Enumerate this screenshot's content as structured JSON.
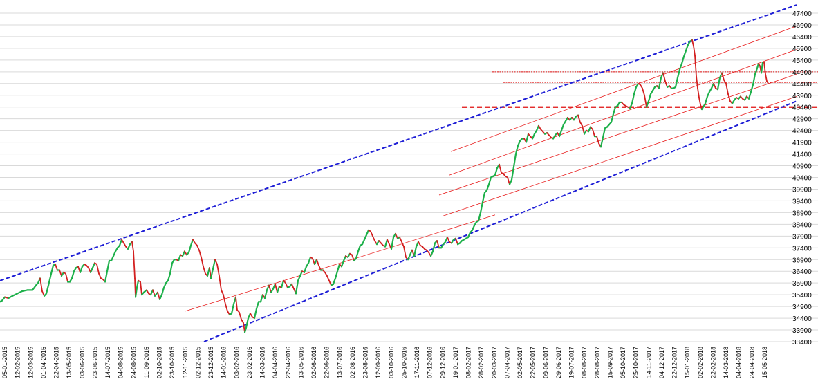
{
  "chart_data": {
    "type": "candlestick",
    "title": "",
    "xlabel": "",
    "ylabel": "",
    "ylim": [
      33400,
      47650
    ],
    "y_ticks": [
      33400,
      33900,
      34400,
      34900,
      35400,
      35900,
      36400,
      36900,
      37400,
      37900,
      38400,
      38900,
      39400,
      39900,
      40400,
      40900,
      41400,
      41900,
      42400,
      42900,
      43400,
      43900,
      44400,
      44900,
      45400,
      45900,
      46400,
      46900,
      47400
    ],
    "x_tick_labels": [
      "05-01-2015",
      "12-02-2015",
      "12-03-2015",
      "01-04-2015",
      "22-04-2015",
      "13-05-2015",
      "03-06-2015",
      "23-06-2015",
      "14-07-2015",
      "04-08-2015",
      "24-08-2015",
      "11-09-2015",
      "02-10-2015",
      "23-10-2015",
      "12-11-2015",
      "02-12-2015",
      "23-12-2015",
      "14-01-2016",
      "03-02-2016",
      "23-02-2016",
      "14-03-2016",
      "04-04-2016",
      "22-04-2016",
      "13-05-2016",
      "02-06-2016",
      "22-06-2016",
      "13-07-2016",
      "02-08-2016",
      "23-08-2016",
      "12-09-2016",
      "03-10-2016",
      "25-10-2016",
      "17-11-2016",
      "07-12-2016",
      "29-12-2016",
      "19-01-2017",
      "08-02-2017",
      "28-02-2017",
      "20-03-2017",
      "07-04-2017",
      "02-05-2017",
      "22-05-2017",
      "09-06-2017",
      "29-06-2017",
      "19-07-2017",
      "08-08-2017",
      "28-08-2017",
      "15-09-2017",
      "05-10-2017",
      "25-10-2017",
      "14-11-2017",
      "04-12-2017",
      "22-12-2017",
      "15-01-2018",
      "02-02-2018",
      "22-02-2018",
      "14-03-2018",
      "04-04-2018",
      "24-04-2018",
      "15-05-2018"
    ],
    "grid": "horizontal",
    "legend": "none",
    "price_path": [
      [
        0,
        35100
      ],
      [
        3,
        35150
      ],
      [
        7,
        35300
      ],
      [
        12,
        35250
      ],
      [
        18,
        35350
      ],
      [
        25,
        35450
      ],
      [
        32,
        35550
      ],
      [
        40,
        35600
      ],
      [
        47,
        35600
      ],
      [
        52,
        35800
      ],
      [
        55,
        35900
      ],
      [
        58,
        36100
      ],
      [
        61,
        35550
      ],
      [
        64,
        35350
      ],
      [
        67,
        35450
      ],
      [
        70,
        35800
      ],
      [
        74,
        36300
      ],
      [
        77,
        36650
      ],
      [
        80,
        36700
      ],
      [
        83,
        36450
      ],
      [
        86,
        36450
      ],
      [
        89,
        36200
      ],
      [
        92,
        36350
      ],
      [
        95,
        36300
      ],
      [
        98,
        35950
      ],
      [
        101,
        35950
      ],
      [
        104,
        36100
      ],
      [
        107,
        36400
      ],
      [
        110,
        36550
      ],
      [
        113,
        36600
      ],
      [
        116,
        36350
      ],
      [
        119,
        36600
      ],
      [
        122,
        36700
      ],
      [
        125,
        36650
      ],
      [
        128,
        36550
      ],
      [
        131,
        36350
      ],
      [
        134,
        36550
      ],
      [
        137,
        36750
      ],
      [
        140,
        36700
      ],
      [
        143,
        36300
      ],
      [
        146,
        36100
      ],
      [
        149,
        36050
      ],
      [
        152,
        35950
      ],
      [
        155,
        36400
      ],
      [
        158,
        36850
      ],
      [
        161,
        36850
      ],
      [
        164,
        37050
      ],
      [
        167,
        37250
      ],
      [
        170,
        37400
      ],
      [
        173,
        37500
      ],
      [
        176,
        37750
      ],
      [
        179,
        37600
      ],
      [
        182,
        37450
      ],
      [
        185,
        37350
      ],
      [
        188,
        37550
      ],
      [
        191,
        37650
      ],
      [
        193,
        37250
      ],
      [
        195,
        36100
      ],
      [
        196,
        35300
      ],
      [
        198,
        35700
      ],
      [
        200,
        36000
      ],
      [
        203,
        35950
      ],
      [
        205,
        35400
      ],
      [
        208,
        35500
      ],
      [
        212,
        35600
      ],
      [
        215,
        35450
      ],
      [
        218,
        35400
      ],
      [
        221,
        35600
      ],
      [
        224,
        35350
      ],
      [
        228,
        35500
      ],
      [
        231,
        35200
      ],
      [
        234,
        35400
      ],
      [
        237,
        35700
      ],
      [
        240,
        35900
      ],
      [
        243,
        36000
      ],
      [
        246,
        36300
      ],
      [
        249,
        36750
      ],
      [
        252,
        36900
      ],
      [
        255,
        36900
      ],
      [
        258,
        36850
      ],
      [
        261,
        37100
      ],
      [
        264,
        37050
      ],
      [
        267,
        37250
      ],
      [
        270,
        37100
      ],
      [
        273,
        37200
      ],
      [
        276,
        37500
      ],
      [
        279,
        37750
      ],
      [
        282,
        37600
      ],
      [
        285,
        37500
      ],
      [
        288,
        37300
      ],
      [
        291,
        37000
      ],
      [
        294,
        36600
      ],
      [
        297,
        36300
      ],
      [
        300,
        36200
      ],
      [
        303,
        36550
      ],
      [
        305,
        36100
      ],
      [
        308,
        36500
      ],
      [
        311,
        36900
      ],
      [
        314,
        36700
      ],
      [
        317,
        36200
      ],
      [
        320,
        35600
      ],
      [
        323,
        35400
      ],
      [
        326,
        35000
      ],
      [
        329,
        34700
      ],
      [
        332,
        34550
      ],
      [
        335,
        34600
      ],
      [
        338,
        35000
      ],
      [
        341,
        35300
      ],
      [
        343,
        34750
      ],
      [
        346,
        34650
      ],
      [
        349,
        34350
      ],
      [
        352,
        34200
      ],
      [
        354,
        33800
      ],
      [
        356,
        34000
      ],
      [
        359,
        34400
      ],
      [
        362,
        34600
      ],
      [
        365,
        34450
      ],
      [
        368,
        34400
      ],
      [
        371,
        34800
      ],
      [
        374,
        35100
      ],
      [
        377,
        35100
      ],
      [
        380,
        35400
      ],
      [
        383,
        35250
      ],
      [
        386,
        35600
      ],
      [
        389,
        35800
      ],
      [
        392,
        35500
      ],
      [
        395,
        35650
      ],
      [
        398,
        35850
      ],
      [
        401,
        35500
      ],
      [
        404,
        35750
      ],
      [
        407,
        35700
      ],
      [
        410,
        36000
      ],
      [
        413,
        35900
      ],
      [
        416,
        35700
      ],
      [
        419,
        35750
      ],
      [
        422,
        35850
      ],
      [
        425,
        35650
      ],
      [
        428,
        35450
      ],
      [
        431,
        36000
      ],
      [
        434,
        36200
      ],
      [
        437,
        36400
      ],
      [
        440,
        36350
      ],
      [
        443,
        36600
      ],
      [
        446,
        36750
      ],
      [
        449,
        37000
      ],
      [
        452,
        36950
      ],
      [
        455,
        36700
      ],
      [
        458,
        36900
      ],
      [
        461,
        36650
      ],
      [
        464,
        36450
      ],
      [
        467,
        36450
      ],
      [
        470,
        36350
      ],
      [
        473,
        36200
      ],
      [
        476,
        36000
      ],
      [
        479,
        35800
      ],
      [
        482,
        35850
      ],
      [
        485,
        36100
      ],
      [
        488,
        36400
      ],
      [
        491,
        36700
      ],
      [
        494,
        36600
      ],
      [
        497,
        36850
      ],
      [
        500,
        37050
      ],
      [
        503,
        37000
      ],
      [
        506,
        37150
      ],
      [
        509,
        37100
      ],
      [
        512,
        36850
      ],
      [
        515,
        36950
      ],
      [
        518,
        37250
      ],
      [
        521,
        37500
      ],
      [
        524,
        37550
      ],
      [
        527,
        37750
      ],
      [
        530,
        37950
      ],
      [
        533,
        38150
      ],
      [
        536,
        38100
      ],
      [
        539,
        37900
      ],
      [
        542,
        37700
      ],
      [
        545,
        37550
      ],
      [
        548,
        37700
      ],
      [
        551,
        37600
      ],
      [
        554,
        37500
      ],
      [
        557,
        37450
      ],
      [
        560,
        37750
      ],
      [
        563,
        37550
      ],
      [
        566,
        37350
      ],
      [
        569,
        37850
      ],
      [
        572,
        38000
      ],
      [
        575,
        37800
      ],
      [
        578,
        37850
      ],
      [
        581,
        37650
      ],
      [
        584,
        37450
      ],
      [
        587,
        37000
      ],
      [
        590,
        36900
      ],
      [
        593,
        37100
      ],
      [
        596,
        37300
      ],
      [
        599,
        37050
      ],
      [
        602,
        37450
      ],
      [
        605,
        37650
      ],
      [
        608,
        37500
      ],
      [
        611,
        37450
      ],
      [
        614,
        37350
      ],
      [
        617,
        37300
      ],
      [
        620,
        37200
      ],
      [
        623,
        37050
      ],
      [
        626,
        37250
      ],
      [
        629,
        37600
      ],
      [
        632,
        37700
      ],
      [
        635,
        37400
      ],
      [
        638,
        37400
      ],
      [
        641,
        37550
      ],
      [
        644,
        37650
      ],
      [
        647,
        37850
      ],
      [
        650,
        37650
      ],
      [
        653,
        37600
      ],
      [
        656,
        37750
      ],
      [
        659,
        37800
      ],
      [
        662,
        37550
      ],
      [
        665,
        37600
      ],
      [
        668,
        37700
      ],
      [
        671,
        37750
      ],
      [
        674,
        37800
      ],
      [
        677,
        37850
      ],
      [
        680,
        38050
      ],
      [
        683,
        38150
      ],
      [
        686,
        38350
      ],
      [
        689,
        38500
      ],
      [
        692,
        38550
      ],
      [
        695,
        38900
      ],
      [
        698,
        39350
      ],
      [
        701,
        39750
      ],
      [
        704,
        39850
      ],
      [
        707,
        40100
      ],
      [
        710,
        40400
      ],
      [
        713,
        40450
      ],
      [
        716,
        40500
      ],
      [
        719,
        40800
      ],
      [
        722,
        40950
      ],
      [
        725,
        40600
      ],
      [
        728,
        40550
      ],
      [
        731,
        40450
      ],
      [
        734,
        40400
      ],
      [
        737,
        40100
      ],
      [
        740,
        40300
      ],
      [
        743,
        40850
      ],
      [
        746,
        41400
      ],
      [
        749,
        41750
      ],
      [
        752,
        41950
      ],
      [
        755,
        42050
      ],
      [
        758,
        42050
      ],
      [
        761,
        41900
      ],
      [
        764,
        42250
      ],
      [
        767,
        42150
      ],
      [
        770,
        42050
      ],
      [
        773,
        42250
      ],
      [
        776,
        42400
      ],
      [
        779,
        42600
      ],
      [
        782,
        42450
      ],
      [
        785,
        42350
      ],
      [
        788,
        42250
      ],
      [
        791,
        42300
      ],
      [
        794,
        42200
      ],
      [
        797,
        42100
      ],
      [
        800,
        42050
      ],
      [
        803,
        42200
      ],
      [
        806,
        42300
      ],
      [
        809,
        42150
      ],
      [
        812,
        42400
      ],
      [
        815,
        42650
      ],
      [
        818,
        42800
      ],
      [
        821,
        42950
      ],
      [
        824,
        42850
      ],
      [
        827,
        42950
      ],
      [
        830,
        42850
      ],
      [
        833,
        43000
      ],
      [
        836,
        43050
      ],
      [
        839,
        42750
      ],
      [
        842,
        42600
      ],
      [
        845,
        42250
      ],
      [
        848,
        42400
      ],
      [
        851,
        42350
      ],
      [
        854,
        42550
      ],
      [
        857,
        42450
      ],
      [
        860,
        42150
      ],
      [
        863,
        42150
      ],
      [
        866,
        41850
      ],
      [
        869,
        41700
      ],
      [
        872,
        42100
      ],
      [
        875,
        42500
      ],
      [
        878,
        42550
      ],
      [
        881,
        42650
      ],
      [
        884,
        42750
      ],
      [
        887,
        43100
      ],
      [
        890,
        43400
      ],
      [
        893,
        43450
      ],
      [
        896,
        43600
      ],
      [
        899,
        43600
      ],
      [
        902,
        43500
      ],
      [
        905,
        43450
      ],
      [
        908,
        43400
      ],
      [
        911,
        43350
      ],
      [
        914,
        43550
      ],
      [
        917,
        43950
      ],
      [
        920,
        44250
      ],
      [
        923,
        44400
      ],
      [
        926,
        44350
      ],
      [
        929,
        44200
      ],
      [
        932,
        43900
      ],
      [
        935,
        43400
      ],
      [
        938,
        43650
      ],
      [
        941,
        43950
      ],
      [
        944,
        44100
      ],
      [
        947,
        44250
      ],
      [
        950,
        44300
      ],
      [
        953,
        44200
      ],
      [
        956,
        44650
      ],
      [
        959,
        44850
      ],
      [
        962,
        44500
      ],
      [
        965,
        44250
      ],
      [
        968,
        44300
      ],
      [
        971,
        44200
      ],
      [
        974,
        44200
      ],
      [
        977,
        44250
      ],
      [
        980,
        44650
      ],
      [
        983,
        45000
      ],
      [
        986,
        45250
      ],
      [
        989,
        45550
      ],
      [
        992,
        45800
      ],
      [
        995,
        46050
      ],
      [
        998,
        46200
      ],
      [
        1001,
        46250
      ],
      [
        1003,
        46000
      ],
      [
        1005,
        45600
      ],
      [
        1007,
        44700
      ],
      [
        1009,
        44200
      ],
      [
        1011,
        43800
      ],
      [
        1013,
        43500
      ],
      [
        1015,
        43300
      ],
      [
        1017,
        43400
      ],
      [
        1020,
        43550
      ],
      [
        1023,
        43850
      ],
      [
        1026,
        44050
      ],
      [
        1029,
        44200
      ],
      [
        1032,
        44400
      ],
      [
        1035,
        44200
      ],
      [
        1038,
        44150
      ],
      [
        1041,
        44650
      ],
      [
        1044,
        44850
      ],
      [
        1047,
        44550
      ],
      [
        1050,
        44400
      ],
      [
        1053,
        43950
      ],
      [
        1056,
        43650
      ],
      [
        1059,
        43550
      ],
      [
        1062,
        43700
      ],
      [
        1065,
        43800
      ],
      [
        1068,
        43750
      ],
      [
        1071,
        43850
      ],
      [
        1074,
        43750
      ],
      [
        1077,
        43700
      ],
      [
        1080,
        43850
      ],
      [
        1083,
        43750
      ],
      [
        1086,
        44050
      ],
      [
        1089,
        44350
      ],
      [
        1092,
        44800
      ],
      [
        1095,
        45050
      ],
      [
        1097,
        45250
      ],
      [
        1099,
        45150
      ],
      [
        1101,
        44850
      ],
      [
        1103,
        45300
      ],
      [
        1105,
        45300
      ],
      [
        1107,
        44800
      ],
      [
        1109,
        44500
      ],
      [
        1111,
        44400
      ]
    ],
    "trend_lines_blue": [
      [
        [
          0,
          36000
        ],
        [
          1152,
          47750
        ]
      ],
      [
        [
          295,
          33400
        ],
        [
          1152,
          43650
        ]
      ]
    ],
    "trend_lines_red": [
      [
        [
          268,
          34700
        ],
        [
          716,
          38800
        ]
      ],
      [
        [
          640,
          38750
        ],
        [
          1152,
          43850
        ]
      ],
      [
        [
          635,
          39650
        ],
        [
          1152,
          44800
        ]
      ],
      [
        [
          650,
          40500
        ],
        [
          1152,
          45850
        ]
      ],
      [
        [
          652,
          41500
        ],
        [
          1152,
          46850
        ]
      ]
    ],
    "horizontal_levels_red": [
      {
        "price": 43400,
        "x_start": 668,
        "style": "bold"
      },
      {
        "price": 44450,
        "x_start": 728,
        "style": "thin"
      },
      {
        "price": 44900,
        "x_start": 712,
        "style": "thin"
      }
    ]
  }
}
